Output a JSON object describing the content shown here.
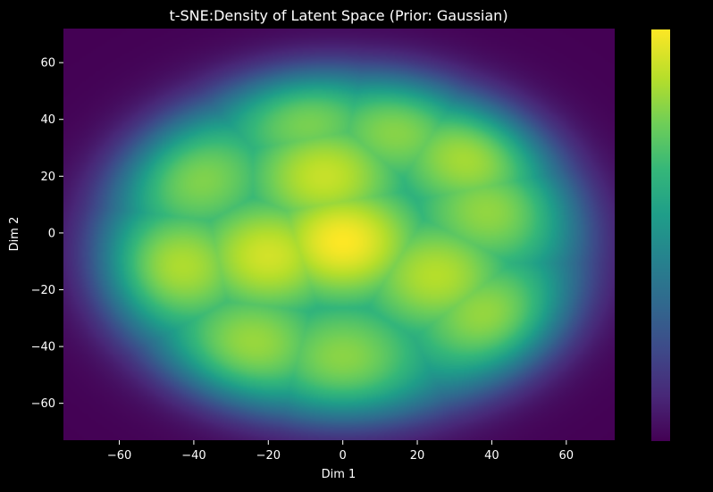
{
  "chart_data": {
    "type": "heatmap",
    "title": "t-SNE:Density of Latent Space (Prior: Gaussian)",
    "xlabel": "Dim 1",
    "ylabel": "Dim 2",
    "xlim": [
      -75,
      73
    ],
    "ylim": [
      -73,
      72
    ],
    "xticks": [
      -60,
      -40,
      -20,
      0,
      20,
      40,
      60
    ],
    "yticks": [
      -60,
      -40,
      -20,
      0,
      20,
      40,
      60
    ],
    "colormap": "viridis",
    "colorbar": {
      "ticks": []
    },
    "grid": false,
    "density_peaks": [
      {
        "x": 0,
        "y": -3,
        "level": 1.0
      },
      {
        "x": -20,
        "y": -8,
        "level": 0.88
      },
      {
        "x": -45,
        "y": -12,
        "level": 0.82
      },
      {
        "x": -5,
        "y": 20,
        "level": 0.85
      },
      {
        "x": 25,
        "y": -15,
        "level": 0.8
      },
      {
        "x": 35,
        "y": 28,
        "level": 0.82
      },
      {
        "x": 40,
        "y": 8,
        "level": 0.72
      },
      {
        "x": 40,
        "y": -30,
        "level": 0.76
      },
      {
        "x": -25,
        "y": -40,
        "level": 0.75
      },
      {
        "x": 0,
        "y": -45,
        "level": 0.7
      },
      {
        "x": -10,
        "y": 42,
        "level": 0.7
      },
      {
        "x": 15,
        "y": 38,
        "level": 0.72
      },
      {
        "x": -40,
        "y": 20,
        "level": 0.7
      }
    ],
    "colors": {
      "background": "#000000",
      "text": "#ffffff",
      "viridis": [
        "#440154",
        "#482878",
        "#3e4989",
        "#31688e",
        "#26828e",
        "#1f9e89",
        "#35b779",
        "#6ece58",
        "#b5de2b",
        "#fde725"
      ]
    }
  }
}
